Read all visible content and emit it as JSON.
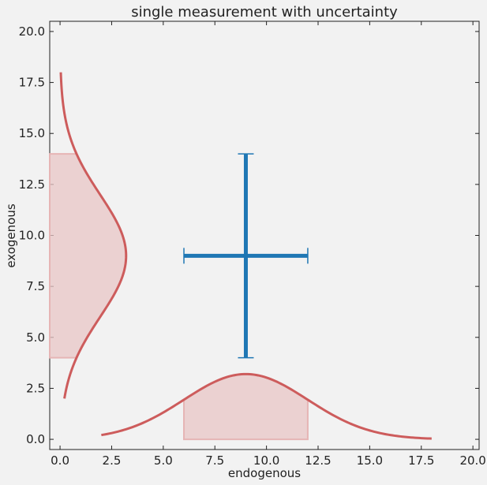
{
  "chart_data": {
    "type": "scatter",
    "title": "single measurement with uncertainty",
    "xlabel": "endogenous",
    "ylabel": "exogenous",
    "xlim": [
      -0.5,
      20.3
    ],
    "ylim": [
      -0.5,
      20.5
    ],
    "xticks": [
      "0.0",
      "2.5",
      "5.0",
      "7.5",
      "10.0",
      "12.5",
      "15.0",
      "17.5",
      "20.0"
    ],
    "yticks": [
      "0.0",
      "2.5",
      "5.0",
      "7.5",
      "10.0",
      "12.5",
      "15.0",
      "17.5",
      "20.0"
    ],
    "point": {
      "x": 9,
      "y": 9,
      "xerr": 3,
      "yerr": 5
    },
    "x_distribution": {
      "mean": 9,
      "std": 3,
      "x_range": [
        2,
        18
      ],
      "shaded": [
        6,
        12
      ]
    },
    "y_distribution": {
      "mean": 9,
      "std": 3,
      "y_range": [
        2,
        18
      ],
      "shaded": [
        4,
        14
      ]
    },
    "colors": {
      "point": "#1f77b4",
      "curve": "#cd5c5c",
      "shade": "#e8c6c6",
      "background": "#f2f2f2"
    },
    "grid": false
  }
}
